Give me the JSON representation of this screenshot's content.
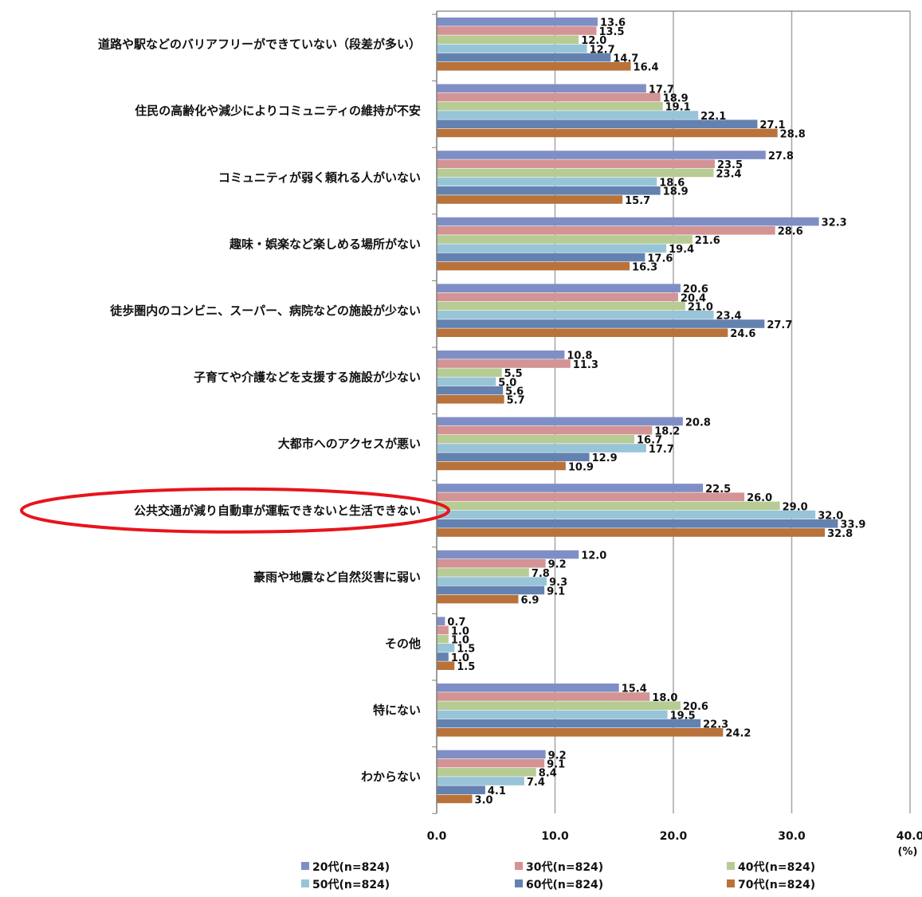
{
  "chart_data": {
    "type": "bar",
    "orientation": "horizontal",
    "title": "",
    "xlabel": "",
    "ylabel": "",
    "xunit": "(%)",
    "xlim": [
      0,
      40
    ],
    "xticks": [
      "0.0",
      "10.0",
      "20.0",
      "30.0",
      "40.0"
    ],
    "grid": true,
    "legend_position": "bottom",
    "categories": [
      "道路や駅などのバリアフリーができていない（段差が多い）",
      "住民の高齢化や減少によりコミュニティの維持が不安",
      "コミュニティが弱く頼れる人がいない",
      "趣味・娯楽など楽しめる場所がない",
      "徒歩圏内のコンビニ、スーパー、病院などの施設が少ない",
      "子育てや介護などを支援する施設が少ない",
      "大都市へのアクセスが悪い",
      "公共交通が減り自動車が運転できないと生活できない",
      "豪雨や地震など自然災害に弱い",
      "その他",
      "特にない",
      "わからない"
    ],
    "highlighted_category_index": 7,
    "series": [
      {
        "name": "20代(n=824)",
        "color": "#7f8fc6",
        "values": [
          13.6,
          17.7,
          27.8,
          32.3,
          20.6,
          10.8,
          20.8,
          22.5,
          12.0,
          0.7,
          15.4,
          9.2
        ]
      },
      {
        "name": "30代(n=824)",
        "color": "#d49394",
        "values": [
          13.5,
          18.9,
          23.5,
          28.6,
          20.4,
          11.3,
          18.2,
          26.0,
          9.2,
          1.0,
          18.0,
          9.1
        ]
      },
      {
        "name": "40代(n=824)",
        "color": "#b7cc94",
        "values": [
          12.0,
          19.1,
          23.4,
          21.6,
          21.0,
          5.5,
          16.7,
          29.0,
          7.8,
          1.0,
          20.6,
          8.4
        ]
      },
      {
        "name": "50代(n=824)",
        "color": "#98c4d8",
        "values": [
          12.7,
          22.1,
          18.6,
          19.4,
          23.4,
          5.0,
          17.7,
          32.0,
          9.3,
          1.5,
          19.5,
          7.4
        ]
      },
      {
        "name": "60代(n=824)",
        "color": "#6382b0",
        "values": [
          14.7,
          27.1,
          18.9,
          17.6,
          27.7,
          5.6,
          12.9,
          33.9,
          9.1,
          1.0,
          22.3,
          4.1
        ]
      },
      {
        "name": "70代(n=824)",
        "color": "#b8723a",
        "values": [
          16.4,
          28.8,
          15.7,
          16.3,
          24.6,
          5.7,
          10.9,
          32.8,
          6.9,
          1.5,
          24.2,
          3.0
        ]
      }
    ],
    "highlight_color": "#e8141c"
  }
}
